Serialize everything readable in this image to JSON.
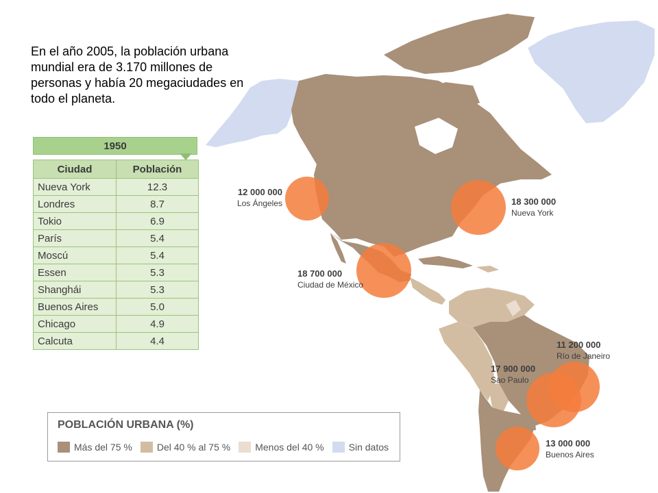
{
  "intro_text": "En el año 2005, la población urbana mundial era de 3.170 millones de personas y había 20 megaciudades en todo el planeta.",
  "table": {
    "year": "1950",
    "headers": [
      "Ciudad",
      "Población"
    ],
    "rows": [
      {
        "city": "Nueva York",
        "population": "12.3"
      },
      {
        "city": "Londres",
        "population": "8.7"
      },
      {
        "city": "Tokio",
        "population": "6.9"
      },
      {
        "city": "París",
        "population": "5.4"
      },
      {
        "city": "Moscú",
        "population": "5.4"
      },
      {
        "city": "Essen",
        "population": "5.3"
      },
      {
        "city": "Shanghái",
        "population": "5.3"
      },
      {
        "city": "Buenos Aires",
        "population": "5.0"
      },
      {
        "city": "Chicago",
        "population": "4.9"
      },
      {
        "city": "Calcuta",
        "population": "4.4"
      }
    ]
  },
  "megacities": {
    "los_angeles": {
      "population": "12 000 000",
      "name": "Los Ángeles"
    },
    "new_york": {
      "population": "18 300 000",
      "name": "Nueva York"
    },
    "mexico_city": {
      "population": "18 700 000",
      "name": "Ciudad de México"
    },
    "rio": {
      "population": "11 200 000",
      "name": "Río de Janeiro"
    },
    "sao_paulo": {
      "population": "17 900 000",
      "name": "Sao Paulo"
    },
    "buenos_aires": {
      "population": "13 000 000",
      "name": "Buenos Aires"
    }
  },
  "legend": {
    "title": "POBLACIÓN URBANA (%)",
    "items": [
      {
        "label": "Más del 75 %",
        "color": "#a89079"
      },
      {
        "label": "Del 40 % al 75 %",
        "color": "#d2bda3"
      },
      {
        "label": "Menos del 40 %",
        "color": "#ebddcf"
      },
      {
        "label": "Sin datos",
        "color": "#d2dbef"
      }
    ]
  },
  "colors": {
    "high": "#a89079",
    "medium": "#d2bda3",
    "low": "#ebddcf",
    "nodata": "#d2dbef",
    "circle": "#f47c3c",
    "table_header": "#c7dfb1",
    "table_body": "#e3efd6",
    "year_tab": "#a9d18e"
  }
}
